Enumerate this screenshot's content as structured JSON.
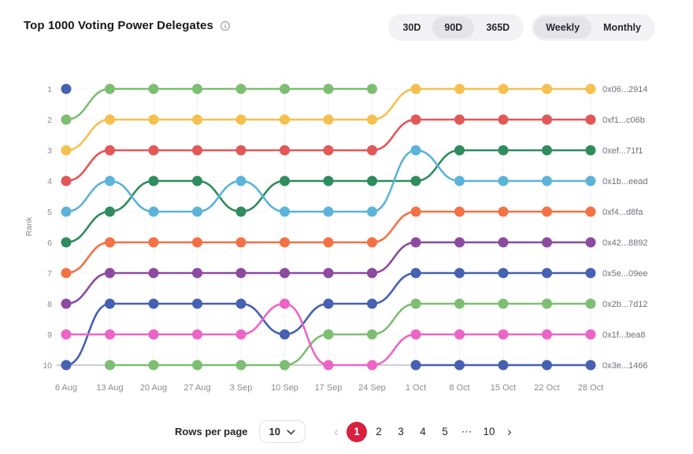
{
  "header": {
    "title": "Top 1000 Voting Power Delegates"
  },
  "toolbar": {
    "range_options": [
      "30D",
      "90D",
      "365D"
    ],
    "range_selected": "90D",
    "granularity_options": [
      "Weekly",
      "Monthly"
    ],
    "granularity_selected": "Weekly"
  },
  "chart_data": {
    "type": "line",
    "subtype": "bump-rank",
    "title": "Top 1000 Voting Power Delegates",
    "xlabel": "",
    "ylabel": "Rank",
    "x": [
      "6 Aug",
      "13 Aug",
      "20 Aug",
      "27 Aug",
      "3 Sep",
      "10 Sep",
      "17 Sep",
      "24 Sep",
      "1 Oct",
      "8 Oct",
      "15 Oct",
      "22 Oct",
      "28 Oct"
    ],
    "yticks": [
      1,
      2,
      3,
      4,
      5,
      6,
      7,
      8,
      9,
      10
    ],
    "ylim": [
      1,
      10
    ],
    "y_inverted": true,
    "grid": true,
    "legend_position": "right-edge-labels",
    "series": [
      {
        "label": "0x06...2914",
        "color": "#f5c04e",
        "ranks": [
          3,
          2,
          2,
          2,
          2,
          2,
          2,
          2,
          1,
          1,
          1,
          1,
          1
        ]
      },
      {
        "label": "0xf1...c06b",
        "color": "#e25757",
        "ranks": [
          4,
          3,
          3,
          3,
          3,
          3,
          3,
          3,
          2,
          2,
          2,
          2,
          2
        ]
      },
      {
        "label": "0xef...71f1",
        "color": "#2f8c5c",
        "ranks": [
          6,
          5,
          4,
          4,
          5,
          4,
          4,
          4,
          4,
          3,
          3,
          3,
          3
        ]
      },
      {
        "label": "0x1b...eead",
        "color": "#5cb3da",
        "ranks": [
          5,
          4,
          5,
          5,
          4,
          5,
          5,
          5,
          3,
          4,
          4,
          4,
          4
        ]
      },
      {
        "label": "0xf4...d8fa",
        "color": "#f47143",
        "ranks": [
          7,
          6,
          6,
          6,
          6,
          6,
          6,
          6,
          5,
          5,
          5,
          5,
          5
        ]
      },
      {
        "label": "0x42...8892",
        "color": "#8c4aa0",
        "ranks": [
          8,
          7,
          7,
          7,
          7,
          7,
          7,
          7,
          6,
          6,
          6,
          6,
          6
        ]
      },
      {
        "label": "0x5e...09ee",
        "color": "#4660b2",
        "ranks": [
          10,
          8,
          8,
          8,
          8,
          9,
          8,
          8,
          7,
          7,
          7,
          7,
          7
        ]
      },
      {
        "label": "0x2b...7d12",
        "color": "#7dbe72",
        "ranks": [
          null,
          10,
          10,
          10,
          10,
          10,
          9,
          9,
          8,
          8,
          8,
          8,
          8
        ]
      },
      {
        "label": "0x1f...bea8",
        "color": "#ec64c8",
        "ranks": [
          9,
          9,
          9,
          9,
          9,
          8,
          10,
          10,
          9,
          9,
          9,
          9,
          9
        ]
      },
      {
        "label": "0x3e...1466",
        "color": "#4660b2",
        "ranks": [
          1,
          null,
          null,
          null,
          null,
          null,
          null,
          null,
          10,
          10,
          10,
          10,
          10
        ]
      },
      {
        "label": "",
        "color": "#7dbe72",
        "ranks": [
          2,
          1,
          1,
          1,
          1,
          1,
          1,
          1,
          null,
          null,
          null,
          null,
          null
        ]
      }
    ]
  },
  "pagination": {
    "rows_per_page_label": "Rows per page",
    "rows_per_page_value": "10",
    "prev": "‹",
    "next": "›",
    "pages": [
      "1",
      "2",
      "3",
      "4",
      "5",
      "⋯",
      "10"
    ],
    "active_page": "1",
    "active_color": "#d6213f"
  }
}
